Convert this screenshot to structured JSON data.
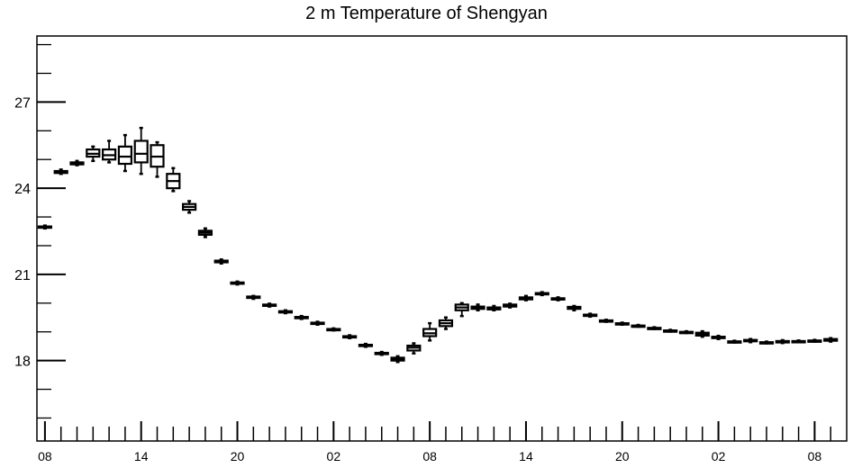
{
  "chart_data": {
    "type": "box",
    "title": "2 m Temperature of Shengyan",
    "xlabel": "",
    "ylabel": "",
    "ylim": [
      15.2,
      29.3
    ],
    "y_ticks": [
      18,
      21,
      24,
      27
    ],
    "x_range": [
      -1,
      100
    ],
    "x_ticks": [
      0,
      12,
      24,
      36,
      48,
      60,
      72,
      84,
      96
    ],
    "x_tick_labels": [
      "08",
      "14",
      "20",
      "02",
      "08",
      "14",
      "20",
      "02",
      "08"
    ],
    "grid": false,
    "legend": "none",
    "boxes": [
      {
        "x": 0,
        "min": 22.6,
        "q1": 22.63,
        "median": 22.65,
        "q3": 22.67,
        "max": 22.7
      },
      {
        "x": 2,
        "min": 24.5,
        "q1": 24.53,
        "median": 24.57,
        "q3": 24.6,
        "max": 24.65
      },
      {
        "x": 4,
        "min": 24.8,
        "q1": 24.83,
        "median": 24.87,
        "q3": 24.9,
        "max": 24.95
      },
      {
        "x": 6,
        "min": 24.95,
        "q1": 25.1,
        "median": 25.2,
        "q3": 25.35,
        "max": 25.45
      },
      {
        "x": 8,
        "min": 24.9,
        "q1": 25.0,
        "median": 25.15,
        "q3": 25.35,
        "max": 25.65
      },
      {
        "x": 10,
        "min": 24.6,
        "q1": 24.85,
        "median": 25.1,
        "q3": 25.45,
        "max": 25.85
      },
      {
        "x": 12,
        "min": 24.5,
        "q1": 24.9,
        "median": 25.2,
        "q3": 25.65,
        "max": 26.1
      },
      {
        "x": 14,
        "min": 24.4,
        "q1": 24.75,
        "median": 25.1,
        "q3": 25.5,
        "max": 25.6
      },
      {
        "x": 16,
        "min": 23.9,
        "q1": 24.0,
        "median": 24.25,
        "q3": 24.5,
        "max": 24.7
      },
      {
        "x": 18,
        "min": 23.15,
        "q1": 23.25,
        "median": 23.35,
        "q3": 23.45,
        "max": 23.55
      },
      {
        "x": 20,
        "min": 22.3,
        "q1": 22.38,
        "median": 22.45,
        "q3": 22.52,
        "max": 22.6
      },
      {
        "x": 22,
        "min": 21.38,
        "q1": 21.42,
        "median": 21.45,
        "q3": 21.48,
        "max": 21.52
      },
      {
        "x": 24,
        "min": 20.65,
        "q1": 20.68,
        "median": 20.7,
        "q3": 20.72,
        "max": 20.75
      },
      {
        "x": 26,
        "min": 20.15,
        "q1": 20.18,
        "median": 20.2,
        "q3": 20.23,
        "max": 20.25
      },
      {
        "x": 28,
        "min": 19.88,
        "q1": 19.91,
        "median": 19.93,
        "q3": 19.95,
        "max": 19.98
      },
      {
        "x": 30,
        "min": 19.65,
        "q1": 19.68,
        "median": 19.7,
        "q3": 19.72,
        "max": 19.75
      },
      {
        "x": 32,
        "min": 19.45,
        "q1": 19.48,
        "median": 19.5,
        "q3": 19.52,
        "max": 19.55
      },
      {
        "x": 34,
        "min": 19.25,
        "q1": 19.28,
        "median": 19.3,
        "q3": 19.32,
        "max": 19.35
      },
      {
        "x": 36,
        "min": 19.05,
        "q1": 19.07,
        "median": 19.08,
        "q3": 19.1,
        "max": 19.12
      },
      {
        "x": 38,
        "min": 18.78,
        "q1": 18.81,
        "median": 18.83,
        "q3": 18.85,
        "max": 18.88
      },
      {
        "x": 40,
        "min": 18.48,
        "q1": 18.51,
        "median": 18.53,
        "q3": 18.55,
        "max": 18.58
      },
      {
        "x": 42,
        "min": 18.2,
        "q1": 18.23,
        "median": 18.25,
        "q3": 18.27,
        "max": 18.3
      },
      {
        "x": 44,
        "min": 17.95,
        "q1": 18.0,
        "median": 18.05,
        "q3": 18.1,
        "max": 18.15
      },
      {
        "x": 46,
        "min": 18.25,
        "q1": 18.35,
        "median": 18.45,
        "q3": 18.52,
        "max": 18.6
      },
      {
        "x": 48,
        "min": 18.7,
        "q1": 18.85,
        "median": 18.95,
        "q3": 19.1,
        "max": 19.3
      },
      {
        "x": 50,
        "min": 19.1,
        "q1": 19.2,
        "median": 19.3,
        "q3": 19.4,
        "max": 19.5
      },
      {
        "x": 52,
        "min": 19.55,
        "q1": 19.75,
        "median": 19.85,
        "q3": 19.95,
        "max": 20.0
      },
      {
        "x": 54,
        "min": 19.75,
        "q1": 19.8,
        "median": 19.85,
        "q3": 19.88,
        "max": 19.95
      },
      {
        "x": 56,
        "min": 19.75,
        "q1": 19.78,
        "median": 19.82,
        "q3": 19.85,
        "max": 19.9
      },
      {
        "x": 58,
        "min": 19.85,
        "q1": 19.88,
        "median": 19.92,
        "q3": 19.95,
        "max": 19.98
      },
      {
        "x": 60,
        "min": 20.1,
        "q1": 20.13,
        "median": 20.17,
        "q3": 20.2,
        "max": 20.25
      },
      {
        "x": 62,
        "min": 20.28,
        "q1": 20.31,
        "median": 20.33,
        "q3": 20.35,
        "max": 20.38
      },
      {
        "x": 64,
        "min": 20.1,
        "q1": 20.13,
        "median": 20.15,
        "q3": 20.17,
        "max": 20.2
      },
      {
        "x": 66,
        "min": 19.75,
        "q1": 19.8,
        "median": 19.83,
        "q3": 19.87,
        "max": 19.9
      },
      {
        "x": 68,
        "min": 19.53,
        "q1": 19.56,
        "median": 19.58,
        "q3": 19.6,
        "max": 19.63
      },
      {
        "x": 70,
        "min": 19.35,
        "q1": 19.37,
        "median": 19.38,
        "q3": 19.4,
        "max": 19.42
      },
      {
        "x": 72,
        "min": 19.25,
        "q1": 19.27,
        "median": 19.28,
        "q3": 19.3,
        "max": 19.32
      },
      {
        "x": 74,
        "min": 19.18,
        "q1": 19.2,
        "median": 19.21,
        "q3": 19.22,
        "max": 19.24
      },
      {
        "x": 76,
        "min": 19.1,
        "q1": 19.12,
        "median": 19.13,
        "q3": 19.14,
        "max": 19.16
      },
      {
        "x": 78,
        "min": 19.01,
        "q1": 19.03,
        "median": 19.04,
        "q3": 19.05,
        "max": 19.07
      },
      {
        "x": 80,
        "min": 18.96,
        "q1": 18.98,
        "median": 18.99,
        "q3": 19.0,
        "max": 19.02
      },
      {
        "x": 82,
        "min": 18.83,
        "q1": 18.87,
        "median": 18.92,
        "q3": 18.97,
        "max": 19.02
      },
      {
        "x": 84,
        "min": 18.75,
        "q1": 18.78,
        "median": 18.8,
        "q3": 18.83,
        "max": 18.86
      },
      {
        "x": 86,
        "min": 18.63,
        "q1": 18.65,
        "median": 18.66,
        "q3": 18.67,
        "max": 18.69
      },
      {
        "x": 88,
        "min": 18.64,
        "q1": 18.67,
        "median": 18.69,
        "q3": 18.72,
        "max": 18.75
      },
      {
        "x": 90,
        "min": 18.6,
        "q1": 18.62,
        "median": 18.63,
        "q3": 18.64,
        "max": 18.66
      },
      {
        "x": 92,
        "min": 18.61,
        "q1": 18.63,
        "median": 18.65,
        "q3": 18.68,
        "max": 18.71
      },
      {
        "x": 94,
        "min": 18.64,
        "q1": 18.66,
        "median": 18.67,
        "q3": 18.68,
        "max": 18.7
      },
      {
        "x": 96,
        "min": 18.66,
        "q1": 18.68,
        "median": 18.69,
        "q3": 18.7,
        "max": 18.72
      },
      {
        "x": 98,
        "min": 18.66,
        "q1": 18.69,
        "median": 18.72,
        "q3": 18.75,
        "max": 18.78
      }
    ]
  }
}
